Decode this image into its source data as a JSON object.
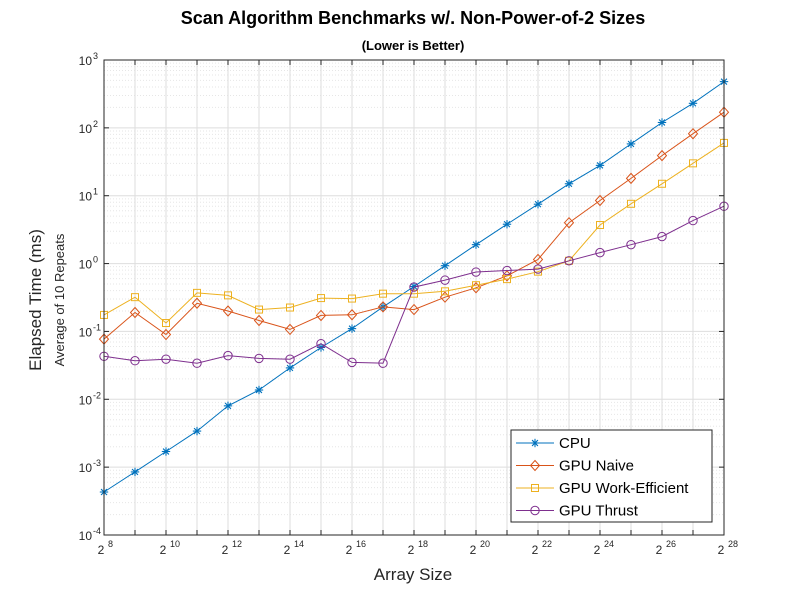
{
  "chart_data": {
    "type": "line",
    "title": "Scan Algorithm Benchmarks w/. Non-Power-of-2 Sizes",
    "subtitle": "(Lower is Better)",
    "xlabel": "Array Size",
    "ylabel": "Elapsed Time (ms)",
    "ylabel_sub": "Average of 10 Repeats",
    "x_scale": "log2",
    "y_scale": "log10",
    "x": [
      256,
      512,
      1024,
      2048,
      4096,
      8192,
      16384,
      32768,
      65536,
      131072,
      262144,
      524288,
      1048576,
      2097152,
      4194304,
      8388608,
      16777216,
      33554432,
      67108864,
      134217728,
      268435456
    ],
    "xlim": [
      256,
      268435456
    ],
    "ylim": [
      0.0001,
      1000
    ],
    "x_ticks": [
      {
        "value": 256,
        "base": "2",
        "exp": "8"
      },
      {
        "value": 1024,
        "base": "2",
        "exp": "10"
      },
      {
        "value": 4096,
        "base": "2",
        "exp": "12"
      },
      {
        "value": 16384,
        "base": "2",
        "exp": "14"
      },
      {
        "value": 65536,
        "base": "2",
        "exp": "16"
      },
      {
        "value": 262144,
        "base": "2",
        "exp": "18"
      },
      {
        "value": 1048576,
        "base": "2",
        "exp": "20"
      },
      {
        "value": 4194304,
        "base": "2",
        "exp": "22"
      },
      {
        "value": 16777216,
        "base": "2",
        "exp": "24"
      },
      {
        "value": 67108864,
        "base": "2",
        "exp": "26"
      },
      {
        "value": 268435456,
        "base": "2",
        "exp": "28"
      }
    ],
    "y_ticks": [
      {
        "value": 0.0001,
        "base": "10",
        "exp": "-4"
      },
      {
        "value": 0.001,
        "base": "10",
        "exp": "-3"
      },
      {
        "value": 0.01,
        "base": "10",
        "exp": "-2"
      },
      {
        "value": 0.1,
        "base": "10",
        "exp": "-1"
      },
      {
        "value": 1,
        "base": "10",
        "exp": "0"
      },
      {
        "value": 10,
        "base": "10",
        "exp": "1"
      },
      {
        "value": 100,
        "base": "10",
        "exp": "2"
      },
      {
        "value": 1000,
        "base": "10",
        "exp": "3"
      }
    ],
    "grid": true,
    "legend_position": "bottom-right",
    "series": [
      {
        "name": "CPU",
        "color": "#0072BD",
        "marker": "asterisk",
        "values": [
          0.00043,
          0.00085,
          0.0017,
          0.0034,
          0.008,
          0.0137,
          0.029,
          0.058,
          0.11,
          0.23,
          0.46,
          0.93,
          1.9,
          3.8,
          7.5,
          15,
          28,
          58,
          120,
          230,
          480
        ]
      },
      {
        "name": "GPU Naive",
        "color": "#D95319",
        "marker": "diamond",
        "values": [
          0.077,
          0.19,
          0.09,
          0.26,
          0.2,
          0.145,
          0.107,
          0.172,
          0.176,
          0.23,
          0.21,
          0.32,
          0.44,
          0.66,
          1.15,
          4.0,
          8.5,
          18,
          39,
          82,
          170
        ]
      },
      {
        "name": "GPU Work-Efficient",
        "color": "#EDB120",
        "marker": "square",
        "values": [
          0.175,
          0.32,
          0.133,
          0.37,
          0.34,
          0.21,
          0.225,
          0.31,
          0.305,
          0.36,
          0.36,
          0.39,
          0.48,
          0.59,
          0.76,
          1.1,
          3.7,
          7.6,
          15,
          30,
          60
        ]
      },
      {
        "name": "GPU Thrust",
        "color": "#7E2F8E",
        "marker": "circle",
        "values": [
          0.043,
          0.037,
          0.039,
          0.034,
          0.044,
          0.04,
          0.039,
          0.066,
          0.035,
          0.034,
          0.45,
          0.57,
          0.75,
          0.79,
          0.83,
          1.1,
          1.45,
          1.9,
          2.5,
          4.3,
          7.0
        ]
      }
    ]
  }
}
